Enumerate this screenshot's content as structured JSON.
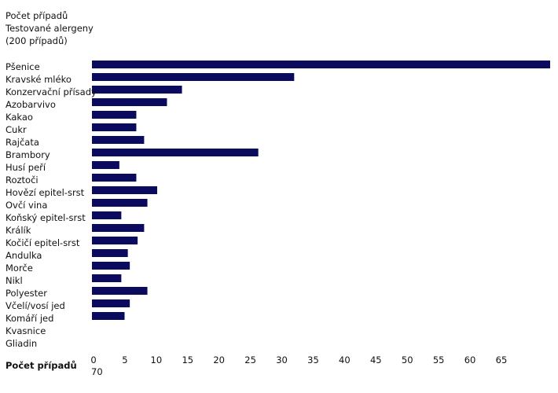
{
  "chart_data": {
    "type": "bar",
    "orientation": "horizontal",
    "header": [
      "Počet případů",
      "Testované alergeny",
      "(200 případů)"
    ],
    "xlabel": "Počet případů",
    "categories": [
      "Pšenice",
      "Kravské mléko",
      "Konzervační přísady",
      "Azobarvivo",
      "Kakao",
      "Cukr",
      "Rajčata",
      "Brambory",
      "Husí peří",
      "Roztoči",
      "Hovězí epitel-srst",
      "Ovčí vina",
      "Koňský epitel-srst",
      "Králík",
      "Kočičí epitel-srst",
      "Andulka",
      "Morče",
      "Nikl",
      "Polyester",
      "Včelí/vosí jed",
      "Komáří jed",
      "Kvasnice",
      "Gliadin"
    ],
    "values": [
      70.5,
      31,
      13.8,
      11.5,
      6.8,
      6.8,
      8,
      25.5,
      4.2,
      6.8,
      10,
      8.5,
      4.5,
      8,
      7,
      5.5,
      5.8,
      4.5,
      8.5,
      5.8,
      5,
      0,
      0
    ],
    "xticks": [
      0,
      5,
      10,
      15,
      20,
      25,
      30,
      35,
      40,
      45,
      50,
      55,
      60,
      65,
      70
    ],
    "xlim": [
      0,
      70
    ],
    "bar_color": "#0a0a5e",
    "grid": false
  }
}
